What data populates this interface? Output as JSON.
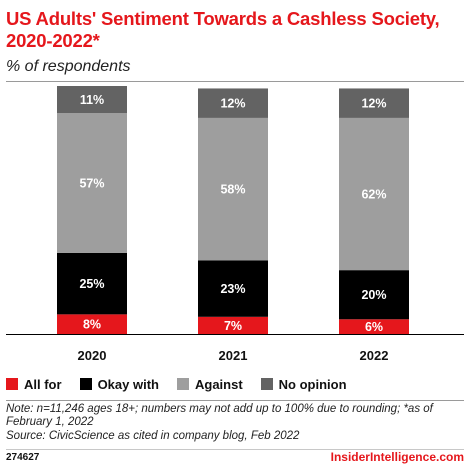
{
  "header": {
    "title": "US Adults' Sentiment Towards a Cashless Society, 2020-2022*",
    "subtitle": "% of respondents"
  },
  "chart_data": {
    "type": "bar",
    "stacked": true,
    "categories": [
      "2020",
      "2021",
      "2022"
    ],
    "series": [
      {
        "name": "All for",
        "color": "#e5171c",
        "values": [
          8,
          7,
          6
        ]
      },
      {
        "name": "Okay with",
        "color": "#000000",
        "values": [
          25,
          23,
          20
        ]
      },
      {
        "name": "Against",
        "color": "#9e9e9e",
        "values": [
          57,
          58,
          62
        ]
      },
      {
        "name": "No opinion",
        "color": "#636363",
        "values": [
          11,
          12,
          12
        ]
      }
    ],
    "value_suffix": "%",
    "legend_position": "bottom-left"
  },
  "footer": {
    "note": "Note: n=11,246 ages 18+; numbers may not add up to 100% due to rounding; *as of February 1, 2022",
    "source": "Source: CivicScience as cited in company blog, Feb 2022",
    "chart_id": "274627",
    "brand": "InsiderIntelligence.com"
  }
}
